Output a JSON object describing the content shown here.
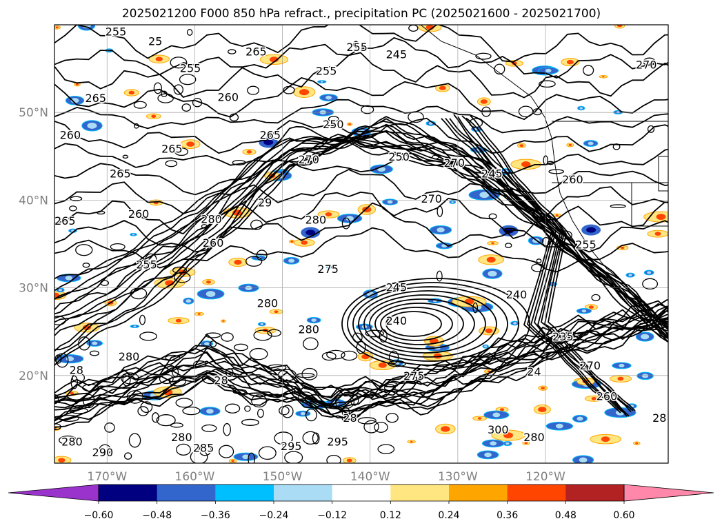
{
  "chart_data": {
    "type": "contour-map",
    "title": "2025021200 F000 850 hPa refract., precipitation PC (2025021600 - 2025021700)",
    "x_tick_labels": [
      "170°W",
      "160°W",
      "150°W",
      "140°W",
      "130°W",
      "120°W"
    ],
    "y_tick_labels": [
      "50°N",
      "40°N",
      "30°N",
      "20°N"
    ],
    "lon_ticks": [
      -170,
      -160,
      -150,
      -140,
      -130,
      -120
    ],
    "lat_ticks": [
      50,
      40,
      30,
      20
    ],
    "xlim": [
      -176,
      -106
    ],
    "ylim": [
      10,
      60
    ],
    "grid": true,
    "colorbar": {
      "tick_labels": [
        "−0.60",
        "−0.48",
        "−0.36",
        "−0.24",
        "−0.12",
        "0.12",
        "0.24",
        "0.36",
        "0.48",
        "0.60"
      ],
      "colors": [
        "#9933cc",
        "#000080",
        "#3366cc",
        "#00bfff",
        "#aadcf5",
        "#ffffff",
        "#ffe680",
        "#ffa500",
        "#ff4500",
        "#b22222",
        "#ff88aa"
      ],
      "extend": "both"
    },
    "contour_labels": [
      {
        "text": "255",
        "lon": -169.0,
        "lat": 58.8
      },
      {
        "text": "25",
        "lon": -164.5,
        "lat": 57.7
      },
      {
        "text": "265",
        "lon": -153.0,
        "lat": 56.5
      },
      {
        "text": "255",
        "lon": -160.5,
        "lat": 54.6
      },
      {
        "text": "255",
        "lon": -141.5,
        "lat": 57.0
      },
      {
        "text": "255",
        "lon": -145.0,
        "lat": 54.3
      },
      {
        "text": "245",
        "lon": -137.0,
        "lat": 56.2
      },
      {
        "text": "270",
        "lon": -108.5,
        "lat": 55.0
      },
      {
        "text": "265",
        "lon": -171.3,
        "lat": 51.2
      },
      {
        "text": "260",
        "lon": -156.2,
        "lat": 51.3
      },
      {
        "text": "265",
        "lon": -151.4,
        "lat": 47.0
      },
      {
        "text": "260",
        "lon": -174.2,
        "lat": 47.0
      },
      {
        "text": "265",
        "lon": -162.6,
        "lat": 45.4
      },
      {
        "text": "265",
        "lon": -168.5,
        "lat": 42.6
      },
      {
        "text": "250",
        "lon": -144.2,
        "lat": 48.2
      },
      {
        "text": "250",
        "lon": -136.7,
        "lat": 44.5
      },
      {
        "text": "270",
        "lon": -147.0,
        "lat": 44.2
      },
      {
        "text": "245",
        "lon": -126.1,
        "lat": 42.6
      },
      {
        "text": "270",
        "lon": -130.4,
        "lat": 43.8
      },
      {
        "text": "260",
        "lon": -116.9,
        "lat": 41.9
      },
      {
        "text": "265",
        "lon": -174.8,
        "lat": 37.2
      },
      {
        "text": "260",
        "lon": -166.4,
        "lat": 38.0
      },
      {
        "text": "280",
        "lon": -158.1,
        "lat": 37.4
      },
      {
        "text": "29",
        "lon": -152.0,
        "lat": 39.3
      },
      {
        "text": "280",
        "lon": -146.2,
        "lat": 37.3
      },
      {
        "text": "270",
        "lon": -133.0,
        "lat": 39.7
      },
      {
        "text": "255",
        "lon": -115.4,
        "lat": 34.5
      },
      {
        "text": "260",
        "lon": -157.9,
        "lat": 34.7
      },
      {
        "text": "255",
        "lon": -165.5,
        "lat": 32.2
      },
      {
        "text": "275",
        "lon": -144.8,
        "lat": 31.7
      },
      {
        "text": "245",
        "lon": -137.0,
        "lat": 29.6
      },
      {
        "text": "240",
        "lon": -123.3,
        "lat": 28.8
      },
      {
        "text": "280",
        "lon": -151.7,
        "lat": 27.8
      },
      {
        "text": "240",
        "lon": -137.0,
        "lat": 25.8
      },
      {
        "text": "280",
        "lon": -147.0,
        "lat": 24.8
      },
      {
        "text": "235",
        "lon": -118.0,
        "lat": 24.0
      },
      {
        "text": "280",
        "lon": -167.5,
        "lat": 21.7
      },
      {
        "text": "28",
        "lon": -173.5,
        "lat": 20.2
      },
      {
        "text": "28",
        "lon": -157.0,
        "lat": 19.0
      },
      {
        "text": "275",
        "lon": -135.0,
        "lat": 19.5
      },
      {
        "text": "24",
        "lon": -121.3,
        "lat": 20.0
      },
      {
        "text": "270",
        "lon": -114.9,
        "lat": 20.7
      },
      {
        "text": "260",
        "lon": -113.0,
        "lat": 17.2
      },
      {
        "text": "28",
        "lon": -107.0,
        "lat": 14.7
      },
      {
        "text": "300",
        "lon": -125.4,
        "lat": 13.4
      },
      {
        "text": "280",
        "lon": -121.3,
        "lat": 12.5
      },
      {
        "text": "280",
        "lon": -161.5,
        "lat": 12.5
      },
      {
        "text": "285",
        "lon": -159.0,
        "lat": 11.3
      },
      {
        "text": "295",
        "lon": -149.0,
        "lat": 11.5
      },
      {
        "text": "295",
        "lon": -143.7,
        "lat": 12.0
      },
      {
        "text": "290",
        "lon": -170.5,
        "lat": 10.8
      },
      {
        "text": "280",
        "lon": -174.0,
        "lat": 12.0
      },
      {
        "text": "28",
        "lon": -142.3,
        "lat": 14.7
      }
    ]
  }
}
